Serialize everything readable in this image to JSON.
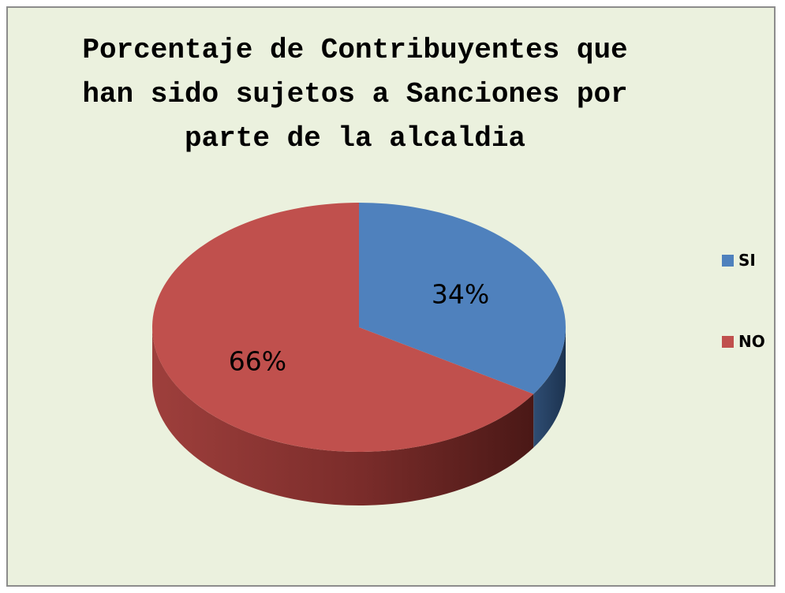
{
  "chart_data": {
    "type": "pie",
    "title": "Porcentaje de Contribuyentes que han sido sujetos a Sanciones por parte de la alcaldia",
    "categories": [
      "SI",
      "NO"
    ],
    "values": [
      34,
      66
    ],
    "data_labels": [
      "34%",
      "66%"
    ],
    "colors": [
      "#4f81bd",
      "#c0504d"
    ],
    "legend": "right",
    "style": "3d"
  }
}
